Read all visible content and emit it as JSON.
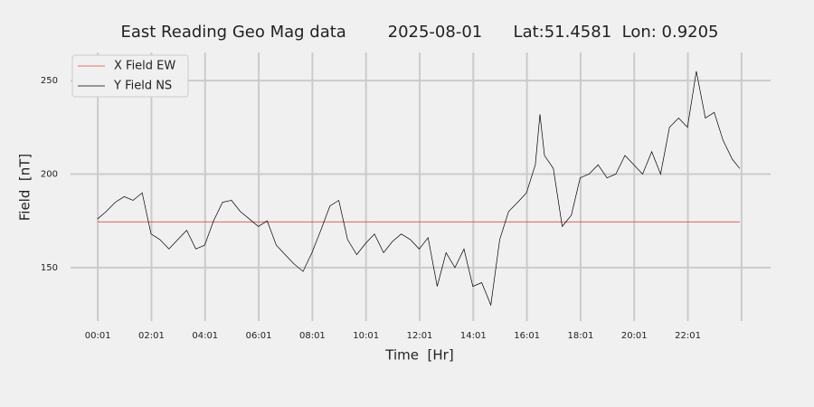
{
  "chart_data": {
    "type": "line",
    "title": "East Reading Geo Mag data        2025-08-01      Lat:51.4581  Lon: 0.9205",
    "xlabel": "Time  [Hr]",
    "ylabel": "Field  [nT]",
    "xlim": [
      -1.0,
      25.1
    ],
    "ylim": [
      119.5,
      267
    ],
    "xticks": [
      {
        "value": 0.0167,
        "label": "00:01"
      },
      {
        "value": 2.0167,
        "label": "02:01"
      },
      {
        "value": 4.0167,
        "label": "04:01"
      },
      {
        "value": 6.0167,
        "label": "06:01"
      },
      {
        "value": 8.0167,
        "label": "08:01"
      },
      {
        "value": 10.0167,
        "label": "10:01"
      },
      {
        "value": 12.0167,
        "label": "12:01"
      },
      {
        "value": 14.0167,
        "label": "14:01"
      },
      {
        "value": 16.0167,
        "label": "16:01"
      },
      {
        "value": 18.0167,
        "label": "18:01"
      },
      {
        "value": 20.0167,
        "label": "20:01"
      },
      {
        "value": 22.0167,
        "label": "22:01"
      },
      {
        "value": 24.0167,
        "label": null
      }
    ],
    "yticks": [
      150,
      200,
      250
    ],
    "grid": true,
    "legend": "upper left",
    "series": [
      {
        "name": "X Field EW",
        "color": "#e8453c",
        "x": [
          0,
          23.95
        ],
        "values": [
          174.5,
          174.5
        ]
      },
      {
        "name": "Y Field NS",
        "color": "#000000",
        "x": [
          0,
          0.33,
          0.67,
          1.0,
          1.33,
          1.67,
          2.0,
          2.33,
          2.67,
          3.0,
          3.33,
          3.67,
          4.0,
          4.33,
          4.67,
          5.0,
          5.33,
          5.67,
          6.0,
          6.33,
          6.67,
          7.0,
          7.33,
          7.67,
          8.0,
          8.33,
          8.67,
          9.0,
          9.33,
          9.67,
          10.0,
          10.33,
          10.67,
          11.0,
          11.33,
          11.67,
          12.0,
          12.33,
          12.67,
          13.0,
          13.33,
          13.67,
          14.0,
          14.33,
          14.67,
          15.0,
          15.33,
          15.67,
          16.0,
          16.33,
          16.5,
          16.67,
          17.0,
          17.33,
          17.67,
          18.0,
          18.33,
          18.67,
          19.0,
          19.33,
          19.67,
          20.0,
          20.33,
          20.67,
          21.0,
          21.33,
          21.67,
          22.0,
          22.33,
          22.67,
          23.0,
          23.33,
          23.67,
          23.95
        ],
        "values": [
          176,
          180,
          185,
          188,
          186,
          190,
          168,
          165,
          160,
          165,
          170,
          160,
          162,
          175,
          185,
          186,
          180,
          176,
          172,
          175,
          162,
          157,
          152,
          148,
          158,
          170,
          183,
          186,
          165,
          157,
          163,
          168,
          158,
          164,
          168,
          165,
          160,
          166,
          140,
          158,
          150,
          160,
          140,
          142,
          130,
          165,
          180,
          185,
          190,
          205,
          232,
          210,
          203,
          172,
          178,
          198,
          200,
          205,
          198,
          200,
          210,
          205,
          200,
          212,
          200,
          225,
          230,
          225,
          255,
          230,
          233,
          218,
          208,
          203
        ]
      }
    ]
  }
}
